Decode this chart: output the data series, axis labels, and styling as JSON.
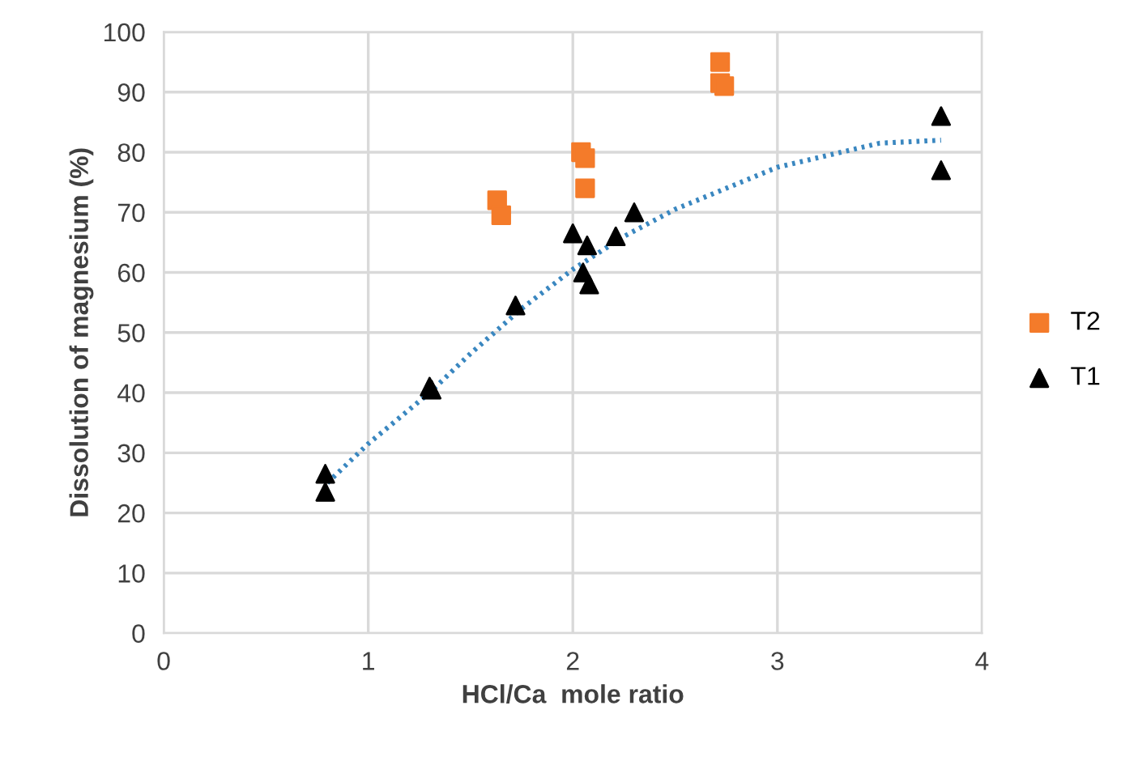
{
  "chart_data": {
    "type": "scatter",
    "xlabel": "HCl/Ca  mole ratio",
    "ylabel": "Dissolution of magnesium (%)",
    "xlim": [
      0,
      4
    ],
    "xticks": [
      0,
      1,
      2,
      3,
      4
    ],
    "ylim": [
      0,
      100
    ],
    "yticks": [
      0,
      10,
      20,
      30,
      40,
      50,
      60,
      70,
      80,
      90,
      100
    ],
    "grid": true,
    "legend": "right",
    "series": [
      {
        "name": "T2",
        "color": "#f47b2a",
        "marker": "square",
        "x": [
          1.63,
          1.65,
          2.04,
          2.06,
          2.06,
          2.72,
          2.72,
          2.74
        ],
        "values": [
          72,
          69.5,
          80,
          79,
          74,
          95,
          91.5,
          91
        ]
      },
      {
        "name": "T1",
        "color": "#000000",
        "marker": "triangle",
        "x": [
          0.79,
          0.79,
          1.3,
          1.31,
          1.72,
          2.0,
          2.07,
          2.05,
          2.08,
          2.21,
          2.3,
          3.8,
          3.8
        ],
        "values": [
          26.5,
          23.5,
          41,
          40.5,
          54.5,
          66.5,
          64.5,
          60,
          58,
          66,
          70,
          86,
          77
        ]
      },
      {
        "type": "line",
        "color": "#3a87c0",
        "line_style": "dotted",
        "marker": "none",
        "x": [
          0.8,
          1.0,
          1.3,
          1.5,
          1.75,
          2.0,
          2.25,
          2.5,
          3.0,
          3.5,
          3.8
        ],
        "values": [
          25,
          31.5,
          40,
          46.5,
          54,
          60.5,
          66,
          70.5,
          77.5,
          81.5,
          82
        ]
      }
    ]
  }
}
